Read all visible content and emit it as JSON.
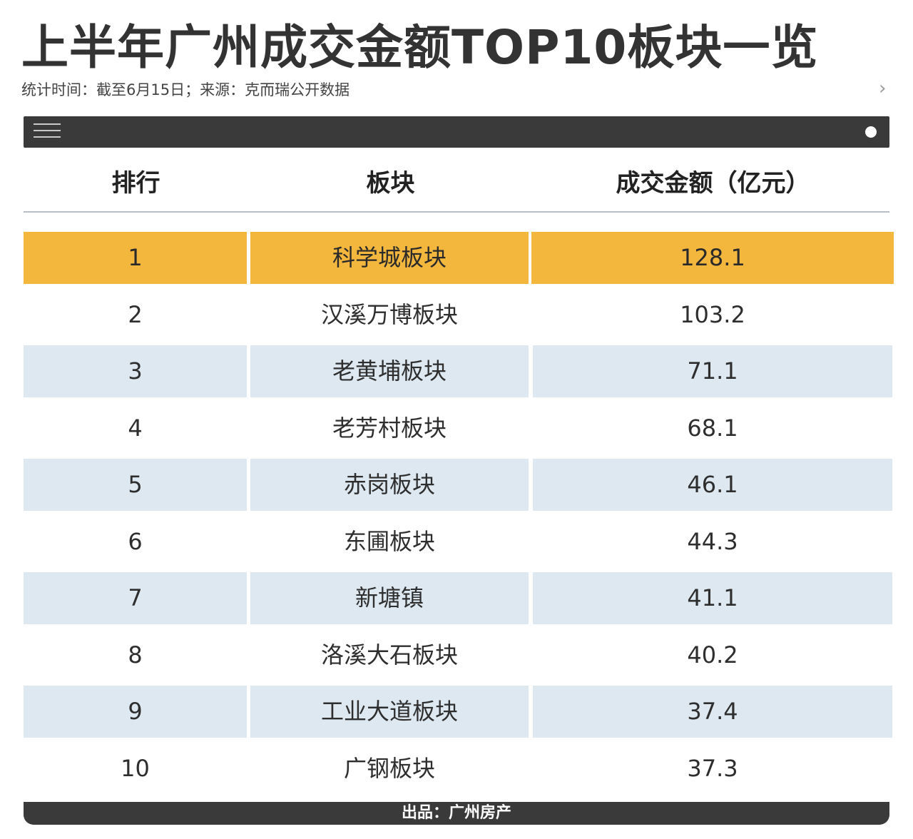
{
  "header": {
    "title": "上半年广州成交金额TOP10板块一览",
    "subtitle": "统计时间：截至6月15日；来源：克而瑞公开数据",
    "chevron": "›"
  },
  "topbar": {
    "menu_icon": "menu-icon",
    "dot_icon": "dot-icon"
  },
  "table": {
    "columns": [
      "排行",
      "板块",
      "成交金额（亿元）"
    ],
    "rows": [
      {
        "rank": "1",
        "area": "科学城板块",
        "amount": "128.1"
      },
      {
        "rank": "2",
        "area": "汉溪万博板块",
        "amount": "103.2"
      },
      {
        "rank": "3",
        "area": "老黄埔板块",
        "amount": "71.1"
      },
      {
        "rank": "4",
        "area": "老芳村板块",
        "amount": "68.1"
      },
      {
        "rank": "5",
        "area": "赤岗板块",
        "amount": "46.1"
      },
      {
        "rank": "6",
        "area": "东圃板块",
        "amount": "44.3"
      },
      {
        "rank": "7",
        "area": "新塘镇",
        "amount": "41.1"
      },
      {
        "rank": "8",
        "area": "洛溪大石板块",
        "amount": "40.2"
      },
      {
        "rank": "9",
        "area": "工业大道板块",
        "amount": "37.4"
      },
      {
        "rank": "10",
        "area": "广钢板块",
        "amount": "37.3"
      }
    ]
  },
  "footer": {
    "text": "出品：广州房产"
  },
  "colors": {
    "highlight": "#f4b73e",
    "shade": "#dde8f0",
    "bar": "#3a3a3a"
  }
}
